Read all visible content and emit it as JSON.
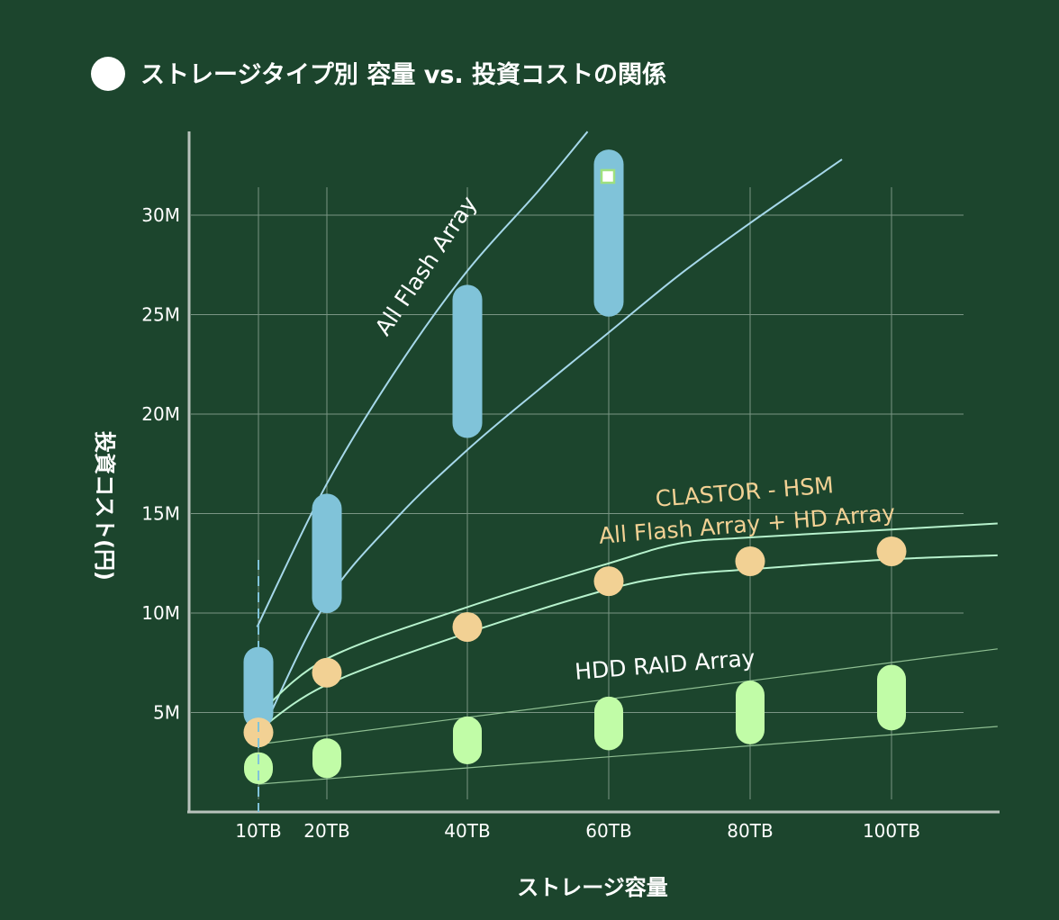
{
  "chart_data": {
    "type": "range-bar",
    "title": "ストレージタイプ別 容量 vs. 投資コストの関係",
    "xlabel": "ストレージ容量",
    "ylabel": "投資コスト(円)",
    "x_ticks": [
      "10TB",
      "20TB",
      "40TB",
      "60TB",
      "80TB",
      "100TB"
    ],
    "x_values": [
      10,
      20,
      40,
      60,
      80,
      100
    ],
    "xlim": [
      0,
      115
    ],
    "y_ticks": [
      "5M",
      "10M",
      "15M",
      "20M",
      "25M",
      "30M"
    ],
    "y_values": [
      5,
      10,
      15,
      20,
      25,
      30
    ],
    "ylim": [
      0,
      34
    ],
    "y_unit": "M円",
    "grid": true,
    "series": [
      {
        "name": "All Flash Array",
        "color": "#80c3d9",
        "ranges": [
          [
            10,
            4.2,
            8.3
          ],
          [
            20,
            10.0,
            16.0
          ],
          [
            40,
            18.8,
            26.5
          ],
          [
            60,
            24.9,
            33.3
          ]
        ],
        "upper_curve": [
          [
            9.8,
            9.3
          ],
          [
            20,
            16.5
          ],
          [
            30,
            22.3
          ],
          [
            40,
            27.2
          ],
          [
            50,
            31.2
          ],
          [
            57,
            34.2
          ]
        ],
        "lower_curve": [
          [
            11,
            4.4
          ],
          [
            20,
            10.6
          ],
          [
            30,
            14.8
          ],
          [
            40,
            18.2
          ],
          [
            50,
            21.2
          ],
          [
            60,
            24.1
          ],
          [
            70,
            27.0
          ],
          [
            80,
            29.6
          ],
          [
            93,
            32.8
          ]
        ]
      },
      {
        "name": "CLASTOR - HSM\nAll Flash Array + HD Array",
        "color": "#f2d194",
        "points": [
          [
            10,
            4.0
          ],
          [
            20,
            7.0
          ],
          [
            40,
            9.3
          ],
          [
            60,
            11.6
          ],
          [
            80,
            12.6
          ],
          [
            100,
            13.1
          ]
        ],
        "upper_curve": [
          [
            10,
            4.9
          ],
          [
            20,
            7.7
          ],
          [
            40,
            10.3
          ],
          [
            60,
            12.5
          ],
          [
            70,
            13.5
          ],
          [
            80,
            13.8
          ],
          [
            100,
            14.2
          ],
          [
            115,
            14.5
          ]
        ],
        "lower_curve": [
          [
            10,
            4.1
          ],
          [
            20,
            6.4
          ],
          [
            40,
            9.0
          ],
          [
            60,
            11.2
          ],
          [
            70,
            11.9
          ],
          [
            80,
            12.2
          ],
          [
            100,
            12.7
          ],
          [
            115,
            12.9
          ]
        ]
      },
      {
        "name": "HDD RAID Array",
        "color": "#c1fca7",
        "ranges": [
          [
            10,
            1.4,
            3.0
          ],
          [
            20,
            1.7,
            3.7
          ],
          [
            40,
            2.4,
            4.8
          ],
          [
            60,
            3.1,
            5.8
          ],
          [
            80,
            3.4,
            6.6
          ],
          [
            100,
            4.1,
            7.4
          ]
        ],
        "upper_curve": [
          [
            10,
            3.4
          ],
          [
            115,
            8.2
          ]
        ],
        "lower_curve": [
          [
            10,
            1.4
          ],
          [
            115,
            4.3
          ]
        ]
      }
    ]
  }
}
